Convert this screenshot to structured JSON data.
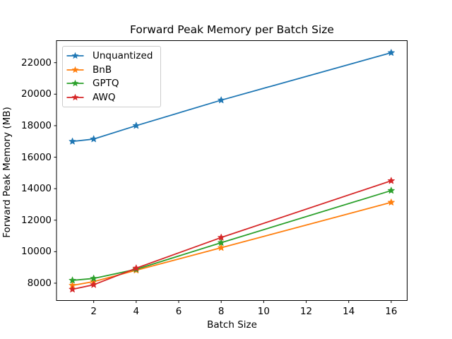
{
  "figure": {
    "title": "Forward Peak Memory per Batch Size"
  },
  "chart_data": {
    "type": "line",
    "title": "Forward Peak Memory per Batch Size",
    "xlabel": "Batch Size",
    "ylabel": "Forward Peak Memory (MB)",
    "x": [
      1,
      2,
      4,
      8,
      16
    ],
    "series": [
      {
        "name": "Unquantized",
        "color": "#1f77b4",
        "values": [
          17000,
          17150,
          18000,
          19620,
          22630
        ]
      },
      {
        "name": "BnB",
        "color": "#ff7f0e",
        "values": [
          7860,
          8100,
          8820,
          10250,
          13130
        ]
      },
      {
        "name": "GPTQ",
        "color": "#2ca02c",
        "values": [
          8180,
          8300,
          8880,
          10570,
          13880
        ]
      },
      {
        "name": "AWQ",
        "color": "#d62728",
        "values": [
          7610,
          7900,
          8950,
          10900,
          14500
        ]
      }
    ],
    "xticks": [
      2,
      4,
      6,
      8,
      10,
      12,
      14,
      16
    ],
    "yticks": [
      8000,
      10000,
      12000,
      14000,
      16000,
      18000,
      20000,
      22000
    ],
    "xlim": [
      0.25,
      16.75
    ],
    "ylim": [
      6900,
      23400
    ],
    "grid": false,
    "marker": "star",
    "legend_position": "upper left",
    "legend_items": [
      "Unquantized",
      "BnB",
      "GPTQ",
      "AWQ"
    ],
    "spine_color": "#000000",
    "background_color": "#ffffff"
  }
}
